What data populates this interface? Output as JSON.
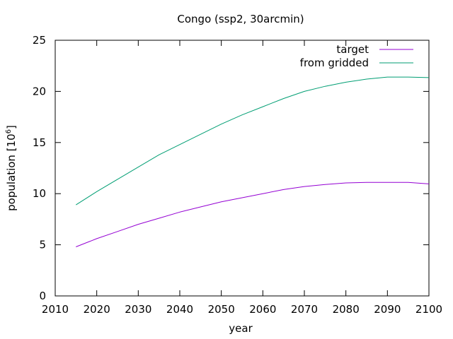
{
  "chart_data": {
    "type": "line",
    "title": "Congo (ssp2, 30arcmin)",
    "xlabel": "year",
    "ylabel_main": "population [10",
    "ylabel_sup": "6",
    "ylabel_end": "]",
    "xlim": [
      2010,
      2100
    ],
    "ylim": [
      0,
      25
    ],
    "xticks": [
      2010,
      2020,
      2030,
      2040,
      2050,
      2060,
      2070,
      2080,
      2090,
      2100
    ],
    "yticks": [
      0,
      5,
      10,
      15,
      20,
      25
    ],
    "grid": false,
    "legend_position": "top-right",
    "series": [
      {
        "name": "target",
        "color": "#9400d3",
        "x": [
          2015,
          2020,
          2025,
          2030,
          2035,
          2040,
          2045,
          2050,
          2055,
          2060,
          2065,
          2070,
          2075,
          2080,
          2085,
          2090,
          2095,
          2100
        ],
        "y": [
          4.8,
          5.6,
          6.3,
          7.0,
          7.6,
          8.2,
          8.7,
          9.2,
          9.6,
          10.0,
          10.4,
          10.7,
          10.9,
          11.05,
          11.1,
          11.1,
          11.1,
          10.95
        ]
      },
      {
        "name": "from gridded",
        "color": "#009e73",
        "x": [
          2015,
          2020,
          2025,
          2030,
          2035,
          2040,
          2045,
          2050,
          2055,
          2060,
          2065,
          2070,
          2075,
          2080,
          2085,
          2090,
          2095,
          2100
        ],
        "y": [
          8.9,
          10.2,
          11.4,
          12.6,
          13.8,
          14.8,
          15.8,
          16.8,
          17.7,
          18.5,
          19.3,
          20.0,
          20.5,
          20.9,
          21.2,
          21.4,
          21.4,
          21.35
        ]
      }
    ]
  }
}
